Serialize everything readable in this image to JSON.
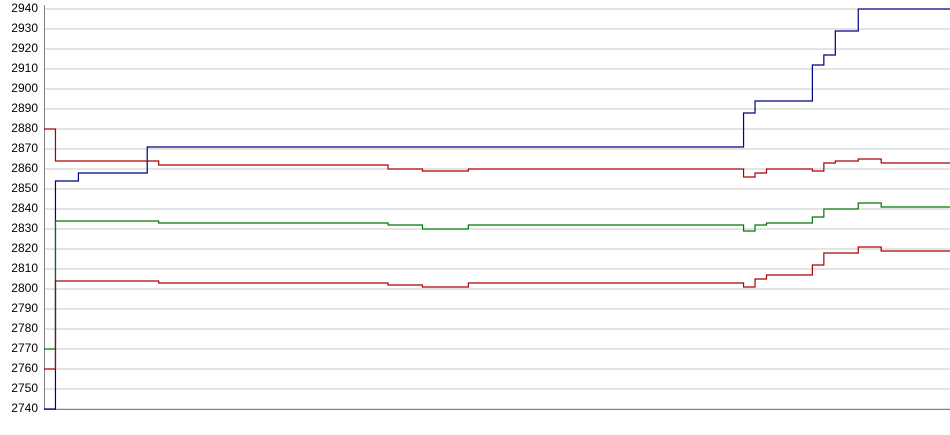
{
  "chart_data": {
    "type": "line",
    "step": true,
    "grid": true,
    "ylim": [
      2740,
      2940
    ],
    "yticks": [
      2740,
      2750,
      2760,
      2770,
      2780,
      2790,
      2800,
      2810,
      2820,
      2830,
      2840,
      2850,
      2860,
      2870,
      2880,
      2890,
      2900,
      2910,
      2920,
      2930,
      2940
    ],
    "series": [
      {
        "color": "#000080",
        "values": [
          2740,
          2854,
          2854,
          2858,
          2858,
          2858,
          2858,
          2858,
          2858,
          2871,
          2871,
          2871,
          2871,
          2871,
          2871,
          2871,
          2871,
          2871,
          2871,
          2871,
          2871,
          2871,
          2871,
          2871,
          2871,
          2871,
          2871,
          2871,
          2871,
          2871,
          2871,
          2871,
          2871,
          2871,
          2871,
          2871,
          2871,
          2871,
          2871,
          2871,
          2871,
          2871,
          2871,
          2871,
          2871,
          2871,
          2871,
          2871,
          2871,
          2871,
          2871,
          2871,
          2871,
          2871,
          2871,
          2871,
          2871,
          2871,
          2871,
          2871,
          2871,
          2888,
          2894,
          2894,
          2894,
          2894,
          2894,
          2912,
          2917,
          2929,
          2929,
          2940,
          2940,
          2940,
          2940,
          2940,
          2940,
          2940,
          2940,
          2940
        ]
      },
      {
        "color": "#aa0000",
        "values": [
          2880,
          2864,
          2864,
          2864,
          2864,
          2864,
          2864,
          2864,
          2864,
          2864,
          2862,
          2862,
          2862,
          2862,
          2862,
          2862,
          2862,
          2862,
          2862,
          2862,
          2862,
          2862,
          2862,
          2862,
          2862,
          2862,
          2862,
          2862,
          2862,
          2862,
          2860,
          2860,
          2860,
          2859,
          2859,
          2859,
          2859,
          2860,
          2860,
          2860,
          2860,
          2860,
          2860,
          2860,
          2860,
          2860,
          2860,
          2860,
          2860,
          2860,
          2860,
          2860,
          2860,
          2860,
          2860,
          2860,
          2860,
          2860,
          2860,
          2860,
          2860,
          2856,
          2858,
          2860,
          2860,
          2860,
          2860,
          2859,
          2863,
          2864,
          2864,
          2865,
          2865,
          2863,
          2863,
          2863,
          2863,
          2863,
          2863,
          2863
        ]
      },
      {
        "color": "#007700",
        "values": [
          2770,
          2834,
          2834,
          2834,
          2834,
          2834,
          2834,
          2834,
          2834,
          2834,
          2833,
          2833,
          2833,
          2833,
          2833,
          2833,
          2833,
          2833,
          2833,
          2833,
          2833,
          2833,
          2833,
          2833,
          2833,
          2833,
          2833,
          2833,
          2833,
          2833,
          2832,
          2832,
          2832,
          2830,
          2830,
          2830,
          2830,
          2832,
          2832,
          2832,
          2832,
          2832,
          2832,
          2832,
          2832,
          2832,
          2832,
          2832,
          2832,
          2832,
          2832,
          2832,
          2832,
          2832,
          2832,
          2832,
          2832,
          2832,
          2832,
          2832,
          2832,
          2829,
          2832,
          2833,
          2833,
          2833,
          2833,
          2836,
          2840,
          2840,
          2840,
          2843,
          2843,
          2841,
          2841,
          2841,
          2841,
          2841,
          2841,
          2841
        ]
      },
      {
        "color": "#aa0000",
        "values": [
          2760,
          2804,
          2804,
          2804,
          2804,
          2804,
          2804,
          2804,
          2804,
          2804,
          2803,
          2803,
          2803,
          2803,
          2803,
          2803,
          2803,
          2803,
          2803,
          2803,
          2803,
          2803,
          2803,
          2803,
          2803,
          2803,
          2803,
          2803,
          2803,
          2803,
          2802,
          2802,
          2802,
          2801,
          2801,
          2801,
          2801,
          2803,
          2803,
          2803,
          2803,
          2803,
          2803,
          2803,
          2803,
          2803,
          2803,
          2803,
          2803,
          2803,
          2803,
          2803,
          2803,
          2803,
          2803,
          2803,
          2803,
          2803,
          2803,
          2803,
          2803,
          2801,
          2805,
          2807,
          2807,
          2807,
          2807,
          2812,
          2818,
          2818,
          2818,
          2821,
          2821,
          2819,
          2819,
          2819,
          2819,
          2819,
          2819,
          2819
        ]
      }
    ]
  }
}
